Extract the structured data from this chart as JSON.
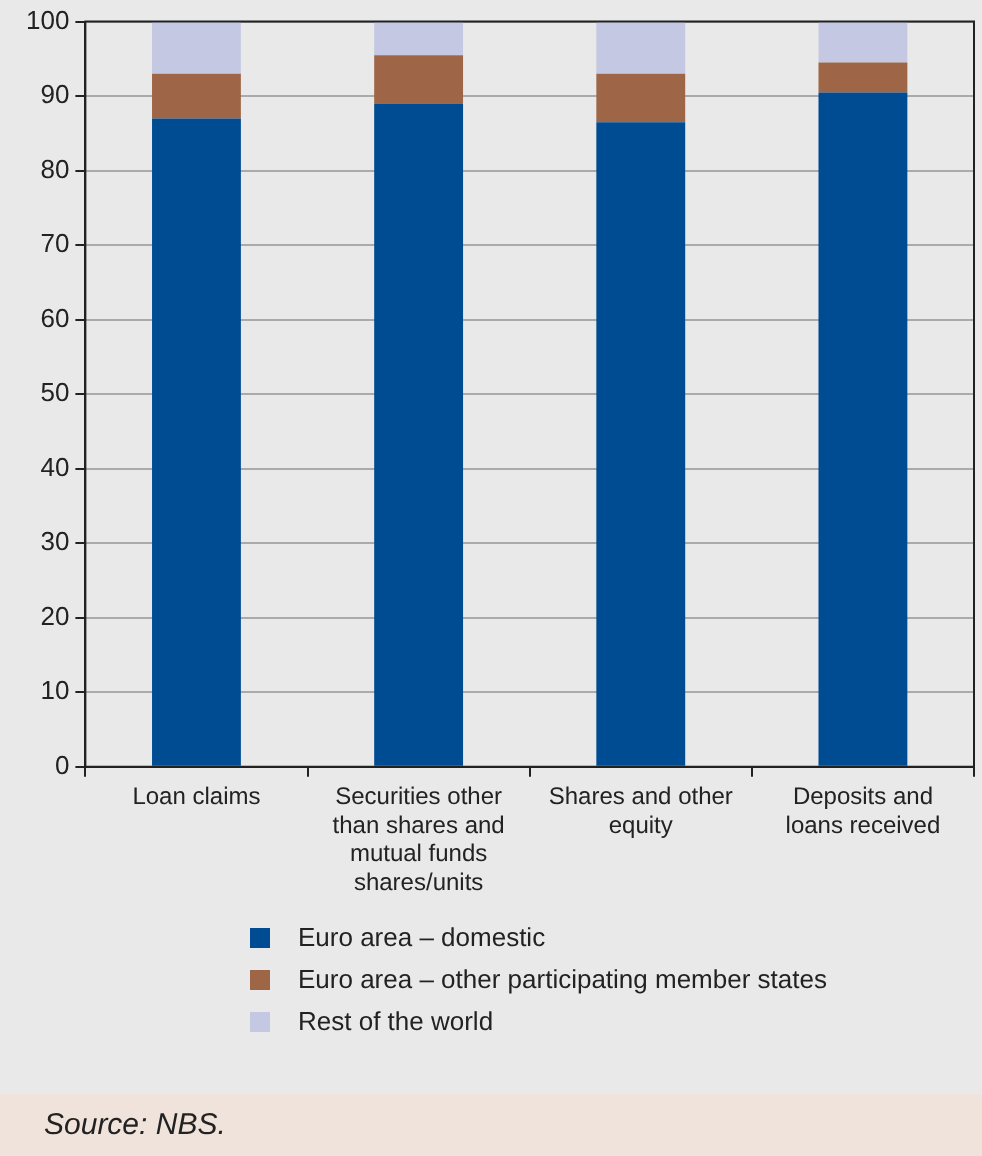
{
  "chart_data": {
    "type": "bar",
    "stacked": true,
    "categories": [
      "Loan claims",
      "Securities other than shares and mutual funds shares/units",
      "Shares and other equity",
      "Deposits and loans received"
    ],
    "series": [
      {
        "name": "Euro area – domestic",
        "color": "#004c93",
        "values": [
          87,
          89,
          86.5,
          90.5
        ]
      },
      {
        "name": "Euro area – other participating member states",
        "color": "#9e6646",
        "values": [
          6,
          6.5,
          6.5,
          4
        ]
      },
      {
        "name": "Rest of the world",
        "color": "#c5c8e2",
        "values": [
          7,
          4.5,
          7,
          5.5
        ]
      }
    ],
    "ylim": [
      0,
      100
    ],
    "yticks": [
      0,
      10,
      20,
      30,
      40,
      50,
      60,
      70,
      80,
      90,
      100
    ],
    "grid": "y",
    "legend": "bottom",
    "annotations": [
      "Source: NBS."
    ]
  }
}
